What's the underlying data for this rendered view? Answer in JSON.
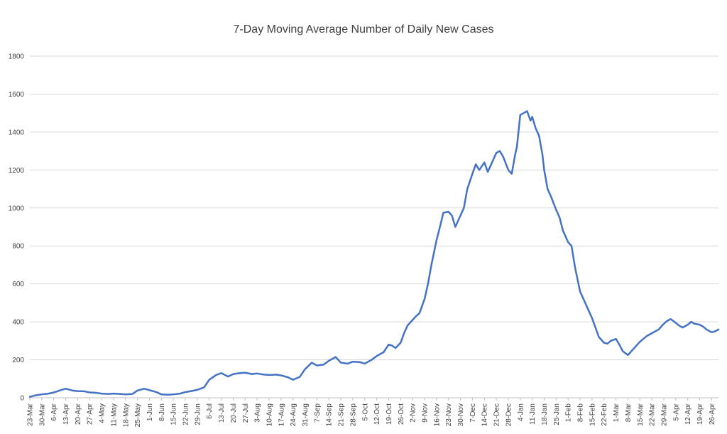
{
  "chart_data": {
    "type": "line",
    "title": "7-Day Moving Average Number of Daily New Cases",
    "xlabel": "",
    "ylabel": "",
    "ylim": [
      0,
      1800
    ],
    "yticks": [
      0,
      200,
      400,
      600,
      800,
      1000,
      1200,
      1400,
      1600,
      1800
    ],
    "x_tick_labels": [
      "23-Mar",
      "30-Mar",
      "6-Apr",
      "13-Apr",
      "20-Apr",
      "27-Apr",
      "4-May",
      "11-May",
      "18-May",
      "25-May",
      "1-Jun",
      "8-Jun",
      "15-Jun",
      "22-Jun",
      "29-Jun",
      "6-Jul",
      "13-Jul",
      "20-Jul",
      "27-Jul",
      "3-Aug",
      "10-Aug",
      "17-Aug",
      "24-Aug",
      "31-Aug",
      "7-Sep",
      "14-Sep",
      "21-Sep",
      "28-Sep",
      "5-Oct",
      "12-Oct",
      "19-Oct",
      "26-Oct",
      "2-Nov",
      "9-Nov",
      "16-Nov",
      "23-Nov",
      "30-Nov",
      "7-Dec",
      "14-Dec",
      "21-Dec",
      "28-Dec",
      "4-Jan",
      "11-Jan",
      "18-Jan",
      "25-Jan",
      "1-Feb",
      "8-Feb",
      "15-Feb",
      "22-Feb",
      "1-Mar",
      "8-Mar",
      "15-Mar",
      "22-Mar",
      "29-Mar",
      "5-Apr",
      "12-Apr",
      "19-Apr",
      "26-Apr"
    ],
    "grid": true,
    "legend": "none",
    "series_color": "#4472c4",
    "series": [
      {
        "x": [
          "23-Mar",
          "26-Mar",
          "30-Mar",
          "3-Apr",
          "6-Apr",
          "10-Apr",
          "13-Apr",
          "17-Apr",
          "20-Apr",
          "24-Apr",
          "27-Apr",
          "1-May",
          "4-May",
          "8-May",
          "11-May",
          "15-May",
          "18-May",
          "22-May",
          "25-May",
          "29-May",
          "1-Jun",
          "5-Jun",
          "8-Jun",
          "12-Jun",
          "15-Jun",
          "19-Jun",
          "22-Jun",
          "26-Jun",
          "29-Jun",
          "3-Jul",
          "6-Jul",
          "10-Jul",
          "13-Jul",
          "17-Jul",
          "20-Jul",
          "24-Jul",
          "27-Jul",
          "31-Jul",
          "3-Aug",
          "7-Aug",
          "10-Aug",
          "14-Aug",
          "17-Aug",
          "21-Aug",
          "24-Aug",
          "28-Aug",
          "31-Aug",
          "4-Sep",
          "7-Sep",
          "11-Sep",
          "14-Sep",
          "18-Sep",
          "21-Sep",
          "25-Sep",
          "28-Sep",
          "2-Oct",
          "5-Oct",
          "9-Oct",
          "12-Oct",
          "16-Oct",
          "19-Oct",
          "21-Oct",
          "23-Oct",
          "26-Oct",
          "28-Oct",
          "30-Oct",
          "2-Nov",
          "4-Nov",
          "6-Nov",
          "9-Nov",
          "11-Nov",
          "13-Nov",
          "16-Nov",
          "18-Nov",
          "20-Nov",
          "23-Nov",
          "25-Nov",
          "27-Nov",
          "30-Nov",
          "2-Dec",
          "4-Dec",
          "7-Dec",
          "9-Dec",
          "11-Dec",
          "14-Dec",
          "16-Dec",
          "18-Dec",
          "21-Dec",
          "23-Dec",
          "25-Dec",
          "28-Dec",
          "30-Dec",
          "1-Jan",
          "2-Jan",
          "4-Jan",
          "6-Jan",
          "8-Jan",
          "10-Jan",
          "11-Jan",
          "13-Jan",
          "15-Jan",
          "17-Jan",
          "18-Jan",
          "20-Jan",
          "22-Jan",
          "25-Jan",
          "27-Jan",
          "29-Jan",
          "1-Feb",
          "3-Feb",
          "5-Feb",
          "8-Feb",
          "10-Feb",
          "12-Feb",
          "15-Feb",
          "17-Feb",
          "19-Feb",
          "22-Feb",
          "24-Feb",
          "26-Feb",
          "1-Mar",
          "3-Mar",
          "5-Mar",
          "8-Mar",
          "10-Mar",
          "12-Mar",
          "15-Mar",
          "17-Mar",
          "19-Mar",
          "22-Mar",
          "24-Mar",
          "26-Mar",
          "29-Mar",
          "31-Mar",
          "2-Apr",
          "5-Apr",
          "7-Apr",
          "9-Apr",
          "12-Apr",
          "14-Apr",
          "16-Apr",
          "19-Apr",
          "21-Apr",
          "23-Apr",
          "26-Apr",
          "28-Apr",
          "30-Apr"
        ],
        "values": [
          5,
          12,
          18,
          22,
          28,
          40,
          48,
          38,
          35,
          34,
          28,
          26,
          22,
          20,
          22,
          20,
          18,
          20,
          38,
          48,
          40,
          30,
          18,
          16,
          18,
          22,
          30,
          36,
          42,
          55,
          95,
          120,
          130,
          112,
          125,
          130,
          132,
          125,
          128,
          122,
          120,
          122,
          118,
          108,
          95,
          110,
          150,
          185,
          170,
          175,
          195,
          215,
          185,
          180,
          190,
          188,
          180,
          200,
          220,
          240,
          280,
          275,
          262,
          290,
          340,
          380,
          410,
          430,
          445,
          520,
          600,
          700,
          830,
          900,
          975,
          980,
          960,
          900,
          960,
          1000,
          1100,
          1180,
          1230,
          1200,
          1240,
          1190,
          1230,
          1290,
          1300,
          1270,
          1200,
          1180,
          1280,
          1320,
          1490,
          1500,
          1510,
          1460,
          1480,
          1420,
          1380,
          1280,
          1200,
          1100,
          1060,
          990,
          950,
          880,
          820,
          800,
          690,
          560,
          520,
          480,
          420,
          370,
          320,
          290,
          285,
          300,
          310,
          280,
          245,
          225,
          245,
          265,
          295,
          310,
          325,
          340,
          350,
          360,
          390,
          405,
          415,
          395,
          380,
          370,
          385,
          400,
          390,
          385,
          375,
          360,
          345,
          350,
          360
        ]
      }
    ]
  }
}
